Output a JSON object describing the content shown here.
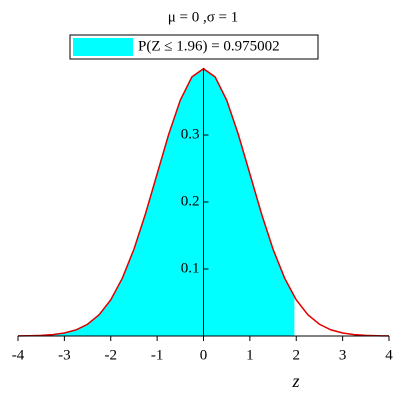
{
  "chart_data": {
    "type": "area",
    "title": "μ = 0 ,σ = 1",
    "xlabel": "z",
    "series": [
      {
        "name": "P(Z ≤ 1.96) = 0.975002",
        "kind": "area",
        "color": "#00ffff",
        "x": [
          -4,
          -3.75,
          -3.5,
          -3.25,
          -3,
          -2.75,
          -2.5,
          -2.25,
          -2,
          -1.75,
          -1.5,
          -1.25,
          -1,
          -0.75,
          -0.5,
          -0.25,
          0,
          0.25,
          0.5,
          0.75,
          1,
          1.25,
          1.5,
          1.75,
          1.96
        ],
        "values": [
          0.00013,
          0.00035,
          0.00087,
          0.00203,
          0.00443,
          0.00909,
          0.01753,
          0.03174,
          0.05399,
          0.08628,
          0.12952,
          0.18265,
          0.24197,
          0.30114,
          0.35207,
          0.38667,
          0.39894,
          0.38667,
          0.35207,
          0.30114,
          0.24197,
          0.18265,
          0.12952,
          0.08628,
          0.05844
        ]
      },
      {
        "kind": "line",
        "color": "#e00000",
        "x": [
          -4,
          -3.75,
          -3.5,
          -3.25,
          -3,
          -2.75,
          -2.5,
          -2.25,
          -2,
          -1.75,
          -1.5,
          -1.25,
          -1,
          -0.75,
          -0.5,
          -0.25,
          0,
          0.25,
          0.5,
          0.75,
          1,
          1.25,
          1.5,
          1.75,
          2,
          2.25,
          2.5,
          2.75,
          3,
          3.25,
          3.5,
          3.75,
          4
        ],
        "values": [
          0.00013,
          0.00035,
          0.00087,
          0.00203,
          0.00443,
          0.00909,
          0.01753,
          0.03174,
          0.05399,
          0.08628,
          0.12952,
          0.18265,
          0.24197,
          0.30114,
          0.35207,
          0.38667,
          0.39894,
          0.38667,
          0.35207,
          0.30114,
          0.24197,
          0.18265,
          0.12952,
          0.08628,
          0.05399,
          0.03174,
          0.01753,
          0.00909,
          0.00443,
          0.00203,
          0.00087,
          0.00035,
          0.00013
        ]
      }
    ],
    "xlim": [
      -4,
      4
    ],
    "xticks": [
      -4,
      -3,
      -2,
      -1,
      0,
      1,
      2,
      3,
      4
    ],
    "ylim": [
      0,
      0.4
    ],
    "yticks": [
      0.1,
      0.2,
      0.3
    ],
    "legend": "top"
  }
}
